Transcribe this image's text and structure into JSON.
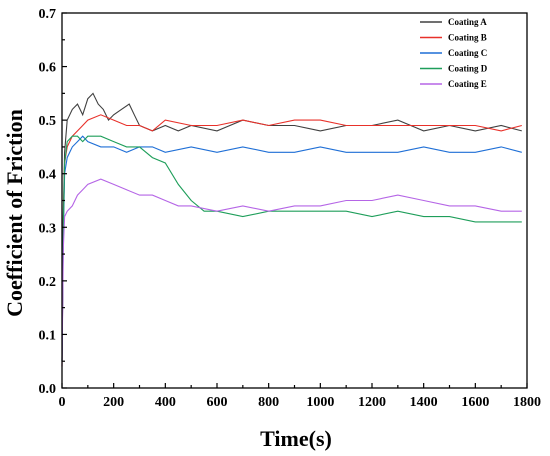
{
  "chart_data": {
    "type": "line",
    "title": "",
    "xlabel": "Time(s)",
    "ylabel": "Coefficient of Friction",
    "xlim": [
      0,
      1800
    ],
    "ylim": [
      0.0,
      0.7
    ],
    "xticks": [
      0,
      200,
      400,
      600,
      800,
      1000,
      1200,
      1400,
      1600,
      1800
    ],
    "yticks": [
      "0.0",
      "0.1",
      "0.2",
      "0.3",
      "0.4",
      "0.5",
      "0.6",
      "0.7"
    ],
    "legend_position": "top-right",
    "grid": false,
    "series": [
      {
        "name": "Coating A",
        "color": "#404040",
        "x": [
          0,
          5,
          10,
          20,
          40,
          60,
          80,
          100,
          120,
          140,
          160,
          180,
          200,
          230,
          260,
          280,
          300,
          350,
          400,
          450,
          500,
          600,
          700,
          800,
          900,
          1000,
          1100,
          1200,
          1300,
          1400,
          1500,
          1600,
          1700,
          1780
        ],
        "y": [
          0.05,
          0.32,
          0.44,
          0.5,
          0.52,
          0.53,
          0.51,
          0.54,
          0.55,
          0.53,
          0.52,
          0.5,
          0.51,
          0.52,
          0.53,
          0.51,
          0.49,
          0.48,
          0.49,
          0.48,
          0.49,
          0.48,
          0.5,
          0.49,
          0.49,
          0.48,
          0.49,
          0.49,
          0.5,
          0.48,
          0.49,
          0.48,
          0.49,
          0.48
        ]
      },
      {
        "name": "Coating B",
        "color": "#e8312a",
        "x": [
          0,
          5,
          10,
          20,
          40,
          60,
          80,
          100,
          150,
          200,
          250,
          300,
          350,
          400,
          500,
          600,
          700,
          800,
          900,
          1000,
          1100,
          1200,
          1300,
          1400,
          1500,
          1600,
          1700,
          1780
        ],
        "y": [
          0.04,
          0.3,
          0.42,
          0.45,
          0.47,
          0.48,
          0.49,
          0.5,
          0.51,
          0.5,
          0.49,
          0.49,
          0.48,
          0.5,
          0.49,
          0.49,
          0.5,
          0.49,
          0.5,
          0.5,
          0.49,
          0.49,
          0.49,
          0.49,
          0.49,
          0.49,
          0.48,
          0.49
        ]
      },
      {
        "name": "Coating C",
        "color": "#1f6fd6",
        "x": [
          0,
          5,
          10,
          20,
          40,
          60,
          80,
          100,
          150,
          200,
          250,
          300,
          350,
          400,
          500,
          600,
          700,
          800,
          900,
          1000,
          1100,
          1200,
          1300,
          1400,
          1500,
          1600,
          1700,
          1780
        ],
        "y": [
          0.05,
          0.28,
          0.4,
          0.43,
          0.45,
          0.46,
          0.47,
          0.46,
          0.45,
          0.45,
          0.44,
          0.45,
          0.45,
          0.44,
          0.45,
          0.44,
          0.45,
          0.44,
          0.44,
          0.45,
          0.44,
          0.44,
          0.44,
          0.45,
          0.44,
          0.44,
          0.45,
          0.44
        ]
      },
      {
        "name": "Coating D",
        "color": "#1e9e5a",
        "x": [
          0,
          5,
          10,
          20,
          40,
          60,
          80,
          100,
          150,
          200,
          250,
          300,
          350,
          400,
          450,
          500,
          550,
          600,
          700,
          800,
          900,
          1000,
          1100,
          1200,
          1300,
          1400,
          1500,
          1600,
          1700,
          1780
        ],
        "y": [
          0.05,
          0.3,
          0.42,
          0.46,
          0.47,
          0.47,
          0.46,
          0.47,
          0.47,
          0.46,
          0.45,
          0.45,
          0.43,
          0.42,
          0.38,
          0.35,
          0.33,
          0.33,
          0.32,
          0.33,
          0.33,
          0.33,
          0.33,
          0.32,
          0.33,
          0.32,
          0.32,
          0.31,
          0.31,
          0.31
        ]
      },
      {
        "name": "Coating E",
        "color": "#b565e6",
        "x": [
          0,
          5,
          10,
          20,
          40,
          60,
          80,
          100,
          150,
          200,
          250,
          300,
          350,
          400,
          450,
          500,
          600,
          700,
          800,
          900,
          1000,
          1100,
          1200,
          1300,
          1400,
          1500,
          1600,
          1700,
          1780
        ],
        "y": [
          0.04,
          0.26,
          0.32,
          0.33,
          0.34,
          0.36,
          0.37,
          0.38,
          0.39,
          0.38,
          0.37,
          0.36,
          0.36,
          0.35,
          0.34,
          0.34,
          0.33,
          0.34,
          0.33,
          0.34,
          0.34,
          0.35,
          0.35,
          0.36,
          0.35,
          0.34,
          0.34,
          0.33,
          0.33
        ]
      }
    ]
  }
}
